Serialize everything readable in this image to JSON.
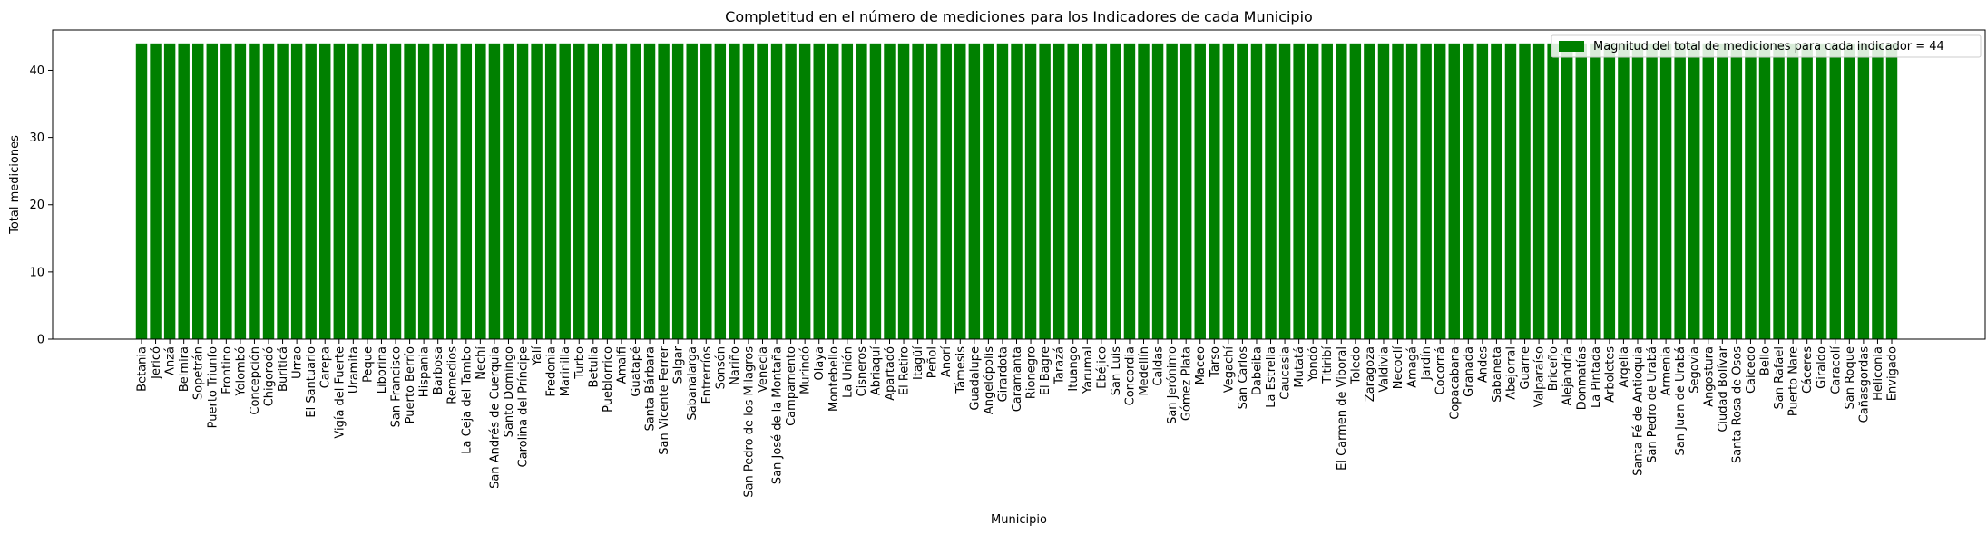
{
  "chart_data": {
    "type": "bar",
    "title": "Completitud en el número de mediciones para los Indicadores de cada Municipio",
    "xlabel": "Municipio",
    "ylabel": "Total mediciones",
    "ylim": [
      0,
      46
    ],
    "yticks": [
      0,
      10,
      20,
      30,
      40
    ],
    "bar_color": "#008000",
    "legend": {
      "label": "Magnitud del total de mediciones para cada indicador = 44",
      "placement": "top-right"
    },
    "categories": [
      "Betania",
      "Jericó",
      "Anzá",
      "Belmira",
      "Sopetrán",
      "Puerto Triunfo",
      "Frontino",
      "Yolombó",
      "Concepción",
      "Chigorodó",
      "Buriticá",
      "Urrao",
      "El Santuario",
      "Carepa",
      "Vigía del Fuerte",
      "Uramita",
      "Peque",
      "Liborina",
      "San Francisco",
      "Puerto Berrío",
      "Hispania",
      "Barbosa",
      "Remedios",
      "La Ceja del Tambo",
      "Nechí",
      "San Andrés de Cuerquia",
      "Santo Domingo",
      "Carolina del Príncipe",
      "Yalí",
      "Fredonia",
      "Marinilla",
      "Turbo",
      "Betulia",
      "Pueblorrico",
      "Amalfi",
      "Guatapé",
      "Santa Bárbara",
      "San Vicente Ferrer",
      "Salgar",
      "Sabanalarga",
      "Entrerríos",
      "Sonsón",
      "Nariño",
      "San Pedro de los Milagros",
      "Venecia",
      "San José de la Montaña",
      "Campamento",
      "Murindó",
      "Olaya",
      "Montebello",
      "La Unión",
      "Cisneros",
      "Abriaquí",
      "Apartadó",
      "El Retiro",
      "Itagüí",
      "Peñol",
      "Anorí",
      "Támesis",
      "Guadalupe",
      "Angelópolis",
      "Girardota",
      "Caramanta",
      "Rionegro",
      "El Bagre",
      "Tarazá",
      "Ituango",
      "Yarumal",
      "Ebéjico",
      "San Luis",
      "Concordia",
      "Medellín",
      "Caldas",
      "San Jerónimo",
      "Gómez Plata",
      "Maceo",
      "Tarso",
      "Vegachí",
      "San Carlos",
      "Dabeiba",
      "La Estrella",
      "Caucasia",
      "Mutatá",
      "Yondó",
      "Titiribí",
      "El Carmen de Viboral",
      "Toledo",
      "Zaragoza",
      "Valdivia",
      "Necoclí",
      "Amagá",
      "Jardín",
      "Cocorná",
      "Copacabana",
      "Granada",
      "Andes",
      "Sabaneta",
      "Abejorral",
      "Guarne",
      "Valparaíso",
      "Briceño",
      "Alejandría",
      "Donmatías",
      "La Pintada",
      "Arboletes",
      "Argelia",
      "Santa Fé de Antioquia",
      "San Pedro de Urabá",
      "Armenia",
      "San Juan de Urabá",
      "Segovia",
      "Angostura",
      "Ciudad Bolívar",
      "Santa Rosa de Osos",
      "Caicedo",
      "Bello",
      "San Rafael",
      "Puerto Nare",
      "Cáceres",
      "Giraldo",
      "Caracolí",
      "San Roque",
      "Cañasgordas",
      "Heliconia",
      "Envigado"
    ],
    "values": [
      44,
      44,
      44,
      44,
      44,
      44,
      44,
      44,
      44,
      44,
      44,
      44,
      44,
      44,
      44,
      44,
      44,
      44,
      44,
      44,
      44,
      44,
      44,
      44,
      44,
      44,
      44,
      44,
      44,
      44,
      44,
      44,
      44,
      44,
      44,
      44,
      44,
      44,
      44,
      44,
      44,
      44,
      44,
      44,
      44,
      44,
      44,
      44,
      44,
      44,
      44,
      44,
      44,
      44,
      44,
      44,
      44,
      44,
      44,
      44,
      44,
      44,
      44,
      44,
      44,
      44,
      44,
      44,
      44,
      44,
      44,
      44,
      44,
      44,
      44,
      44,
      44,
      44,
      44,
      44,
      44,
      44,
      44,
      44,
      44,
      44,
      44,
      44,
      44,
      44,
      44,
      44,
      44,
      44,
      44,
      44,
      44,
      44,
      44,
      44,
      44,
      44,
      44,
      44,
      44,
      44,
      44,
      44,
      44,
      44,
      44,
      44,
      44,
      44,
      44,
      44,
      44,
      44,
      44,
      44,
      44,
      44,
      44,
      44,
      44
    ]
  }
}
